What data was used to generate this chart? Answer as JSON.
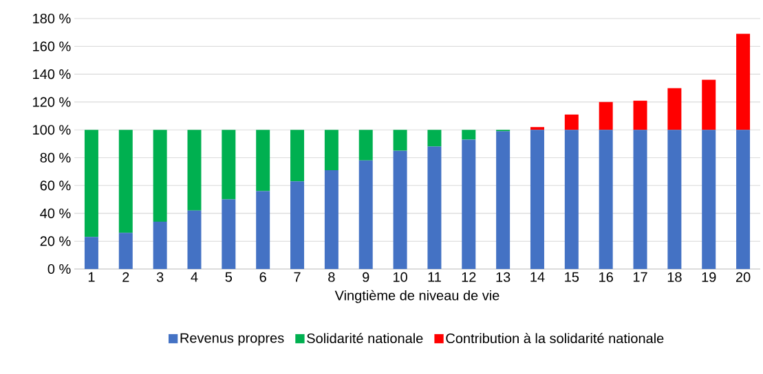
{
  "chart_data": {
    "type": "bar",
    "stacked": true,
    "xlabel": "Vingtième de niveau de vie",
    "categories": [
      "1",
      "2",
      "3",
      "4",
      "5",
      "6",
      "7",
      "8",
      "9",
      "10",
      "11",
      "12",
      "13",
      "14",
      "15",
      "16",
      "17",
      "18",
      "19",
      "20"
    ],
    "series": [
      {
        "name": "Revenus propres",
        "color": "#4472c4",
        "values": [
          23,
          26,
          34,
          42,
          50,
          56,
          63,
          71,
          78,
          85,
          88,
          93,
          99,
          100,
          100,
          100,
          100,
          100,
          100,
          100
        ]
      },
      {
        "name": "Solidarité nationale",
        "color": "#00b050",
        "values": [
          77,
          74,
          66,
          58,
          50,
          44,
          37,
          29,
          22,
          15,
          12,
          7,
          1,
          null,
          null,
          null,
          null,
          null,
          null,
          null
        ]
      },
      {
        "name": "Contribution à la solidarité nationale",
        "color": "#ff0000",
        "values": [
          null,
          null,
          null,
          null,
          null,
          null,
          null,
          null,
          null,
          null,
          null,
          null,
          null,
          2,
          11,
          20,
          21,
          30,
          36,
          69
        ]
      }
    ],
    "ylim": [
      0,
      180
    ],
    "yticks": [
      {
        "value": 0,
        "label": "0 %"
      },
      {
        "value": 20,
        "label": "20 %"
      },
      {
        "value": 40,
        "label": "40 %"
      },
      {
        "value": 60,
        "label": "60 %"
      },
      {
        "value": 80,
        "label": "80 %"
      },
      {
        "value": 100,
        "label": "100 %"
      },
      {
        "value": 120,
        "label": "120 %"
      },
      {
        "value": 140,
        "label": "140 %"
      },
      {
        "value": 160,
        "label": "160 %"
      },
      {
        "value": 180,
        "label": "180 %"
      }
    ],
    "grid": "y",
    "legend": "bottom"
  }
}
